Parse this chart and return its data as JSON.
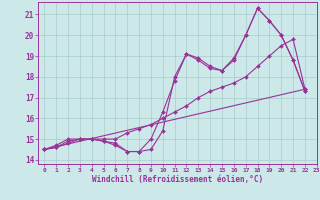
{
  "background_color": "#cce8e8",
  "line_color": "#993399",
  "grid_color": "#aacccc",
  "xlabel": "Windchill (Refroidissement éolien,°C)",
  "xlim": [
    -0.5,
    23
  ],
  "ylim": [
    13.8,
    21.6
  ],
  "yticks": [
    14,
    15,
    16,
    17,
    18,
    19,
    20,
    21
  ],
  "xticks": [
    0,
    1,
    2,
    3,
    4,
    5,
    6,
    7,
    8,
    9,
    10,
    11,
    12,
    13,
    14,
    15,
    16,
    17,
    18,
    19,
    20,
    21,
    22,
    23
  ],
  "series": [
    {
      "x": [
        0,
        1,
        2,
        3,
        4,
        5,
        6,
        7,
        8,
        9,
        10,
        11,
        12,
        13,
        14,
        15,
        16,
        17,
        18,
        19,
        20,
        21,
        22
      ],
      "y": [
        14.5,
        14.7,
        15.0,
        15.0,
        15.0,
        14.9,
        14.7,
        14.4,
        14.4,
        15.0,
        16.3,
        17.8,
        19.1,
        18.9,
        18.5,
        18.3,
        18.9,
        20.0,
        21.3,
        20.7,
        20.0,
        18.8,
        17.3
      ]
    },
    {
      "x": [
        0,
        22
      ],
      "y": [
        14.5,
        17.4
      ]
    },
    {
      "x": [
        0,
        1,
        2,
        3,
        4,
        5,
        6,
        7,
        8,
        9,
        10,
        11,
        12,
        13,
        14,
        15,
        16,
        17,
        18,
        19,
        20,
        21,
        22
      ],
      "y": [
        14.5,
        14.6,
        14.9,
        15.0,
        15.0,
        15.0,
        15.0,
        15.3,
        15.5,
        15.7,
        16.0,
        16.3,
        16.6,
        17.0,
        17.3,
        17.5,
        17.7,
        18.0,
        18.5,
        19.0,
        19.5,
        19.8,
        17.4
      ]
    },
    {
      "x": [
        0,
        1,
        2,
        3,
        4,
        5,
        6,
        7,
        8,
        9,
        10,
        11,
        12,
        13,
        14,
        15,
        16,
        17,
        18,
        19,
        20,
        21,
        22
      ],
      "y": [
        14.5,
        14.6,
        14.8,
        15.0,
        15.0,
        14.9,
        14.8,
        14.4,
        14.4,
        14.5,
        15.4,
        18.0,
        19.1,
        18.8,
        18.4,
        18.3,
        18.8,
        20.0,
        21.3,
        20.7,
        20.0,
        18.8,
        17.3
      ]
    }
  ],
  "marker": "D",
  "markersize": 2,
  "linewidth": 0.8
}
